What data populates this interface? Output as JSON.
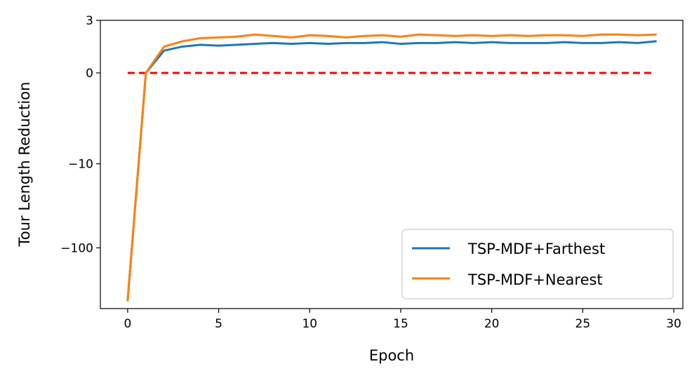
{
  "chart_data": {
    "type": "line",
    "title": "",
    "xlabel": "Epoch",
    "ylabel": "Tour Length Reduction",
    "y_scale": "symlog",
    "xlim": [
      -1.5,
      30.5
    ],
    "ylim": [
      -500,
      3
    ],
    "x_ticks": [
      0,
      5,
      10,
      15,
      20,
      25,
      30
    ],
    "x_tick_labels": [
      "0",
      "5",
      "10",
      "15",
      "20",
      "25",
      "30"
    ],
    "y_ticks": [
      -100,
      -10,
      0,
      3
    ],
    "y_tick_labels": [
      "−100",
      "−10",
      "0",
      "3"
    ],
    "x": [
      0,
      1,
      2,
      3,
      4,
      5,
      6,
      7,
      8,
      9,
      10,
      11,
      12,
      13,
      14,
      15,
      16,
      17,
      18,
      19,
      20,
      21,
      22,
      23,
      24,
      25,
      26,
      27,
      28,
      29
    ],
    "series": [
      {
        "name": "TSP-MDF+Farthest",
        "color": "#1f77b4",
        "values": [
          -400,
          0,
          0.8,
          1.0,
          1.1,
          1.05,
          1.1,
          1.15,
          1.2,
          1.15,
          1.2,
          1.15,
          1.2,
          1.2,
          1.25,
          1.15,
          1.2,
          1.2,
          1.25,
          1.2,
          1.25,
          1.2,
          1.2,
          1.2,
          1.25,
          1.2,
          1.2,
          1.25,
          1.2,
          1.3
        ]
      },
      {
        "name": "TSP-MDF+Nearest",
        "color": "#ff7f0e",
        "values": [
          -400,
          0,
          1.0,
          1.3,
          1.5,
          1.55,
          1.6,
          1.75,
          1.65,
          1.55,
          1.7,
          1.65,
          1.55,
          1.65,
          1.7,
          1.6,
          1.75,
          1.7,
          1.65,
          1.7,
          1.65,
          1.7,
          1.65,
          1.7,
          1.7,
          1.65,
          1.75,
          1.75,
          1.7,
          1.75
        ]
      }
    ],
    "reference_line": {
      "y": 0,
      "color": "#ff0000",
      "style": "dashed"
    },
    "grid": false,
    "legend_position": "lower-right"
  }
}
